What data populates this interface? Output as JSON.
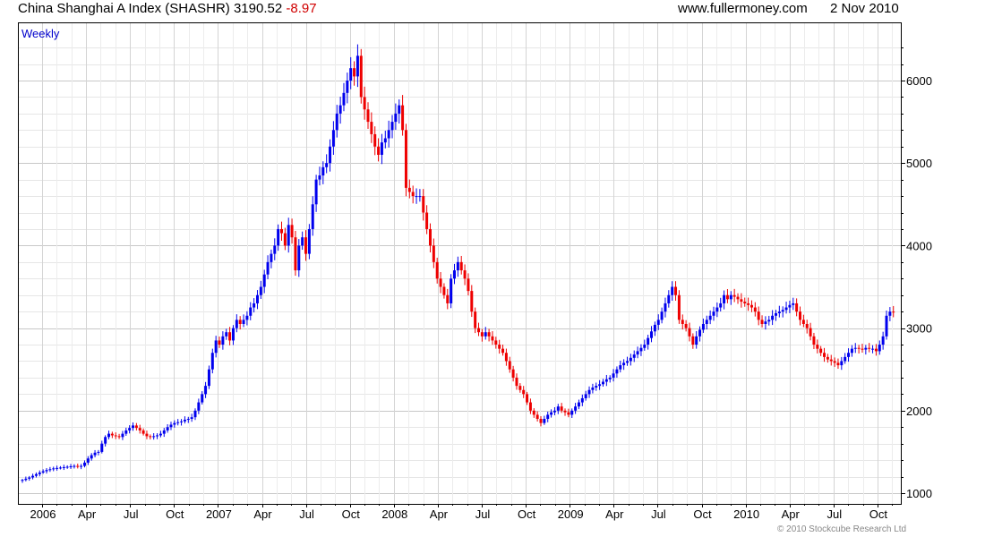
{
  "header": {
    "title": "China Shanghai A Index (SHASHR) 3190.52",
    "change": "-8.97",
    "site": "www.fullermoney.com",
    "date": "2 Nov 2010"
  },
  "footer": {
    "copyright": "© 2010 Stockcube Research Ltd"
  },
  "colors": {
    "up": "#0000ee",
    "down": "#ee0000",
    "grid": "#dddddd",
    "change": "#d00000"
  },
  "chart_data": {
    "type": "candlestick",
    "period_label": "Weekly",
    "title": "China Shanghai A Index (SHASHR)",
    "last": 3190.52,
    "ylim": [
      1000,
      6500
    ],
    "yticks": [
      1000,
      2000,
      3000,
      4000,
      5000,
      6000
    ],
    "xticks": [
      "2006",
      "Apr",
      "Jul",
      "Oct",
      "2007",
      "Apr",
      "Jul",
      "Oct",
      "2008",
      "Apr",
      "Jul",
      "Oct",
      "2009",
      "Apr",
      "Jul",
      "Oct",
      "2010",
      "Apr",
      "Jul",
      "Oct"
    ],
    "x_start": "Jan 2006",
    "x_end": "2 Nov 2010",
    "grid": true,
    "weekly_close": [
      1160,
      1175,
      1190,
      1210,
      1230,
      1250,
      1265,
      1280,
      1290,
      1300,
      1305,
      1310,
      1315,
      1320,
      1325,
      1330,
      1320,
      1330,
      1370,
      1420,
      1460,
      1490,
      1500,
      1600,
      1680,
      1720,
      1700,
      1690,
      1680,
      1720,
      1760,
      1790,
      1820,
      1790,
      1760,
      1720,
      1690,
      1680,
      1690,
      1700,
      1720,
      1760,
      1800,
      1830,
      1850,
      1860,
      1870,
      1890,
      1900,
      1920,
      2000,
      2100,
      2200,
      2300,
      2500,
      2700,
      2850,
      2800,
      2900,
      2950,
      2850,
      3000,
      3100,
      3050,
      3100,
      3150,
      3250,
      3300,
      3400,
      3500,
      3650,
      3800,
      3900,
      4000,
      4200,
      4150,
      4000,
      4250,
      4100,
      3700,
      4000,
      4100,
      3900,
      4200,
      4500,
      4800,
      4850,
      4950,
      5000,
      5200,
      5400,
      5600,
      5700,
      5850,
      6000,
      6150,
      6050,
      6300,
      5800,
      5650,
      5500,
      5350,
      5200,
      5100,
      5250,
      5300,
      5400,
      5500,
      5600,
      5700,
      5400,
      4700,
      4650,
      4600,
      4600,
      4600,
      4400,
      4200,
      4000,
      3800,
      3600,
      3500,
      3400,
      3300,
      3600,
      3700,
      3800,
      3700,
      3600,
      3450,
      3200,
      3000,
      2950,
      2900,
      2950,
      2900,
      2850,
      2800,
      2750,
      2700,
      2600,
      2500,
      2400,
      2300,
      2250,
      2200,
      2100,
      2000,
      1950,
      1900,
      1850,
      1900,
      1950,
      1980,
      2000,
      2050,
      2000,
      1980,
      1950,
      2000,
      2050,
      2100,
      2150,
      2200,
      2250,
      2280,
      2300,
      2320,
      2350,
      2380,
      2400,
      2450,
      2500,
      2550,
      2580,
      2600,
      2640,
      2680,
      2720,
      2760,
      2800,
      2880,
      2960,
      3040,
      3100,
      3200,
      3300,
      3400,
      3500,
      3400,
      3100,
      3050,
      3000,
      2900,
      2800,
      2900,
      2980,
      3050,
      3100,
      3150,
      3200,
      3250,
      3300,
      3400,
      3350,
      3400,
      3380,
      3350,
      3320,
      3300,
      3280,
      3250,
      3200,
      3100,
      3050,
      3080,
      3100,
      3150,
      3180,
      3200,
      3220,
      3250,
      3280,
      3300,
      3200,
      3100,
      3050,
      3000,
      2900,
      2800,
      2750,
      2700,
      2650,
      2620,
      2600,
      2580,
      2550,
      2600,
      2650,
      2700,
      2750,
      2760,
      2750,
      2740,
      2760,
      2750,
      2750,
      2720,
      2800,
      2900,
      3150,
      3200,
      3190.52
    ]
  }
}
